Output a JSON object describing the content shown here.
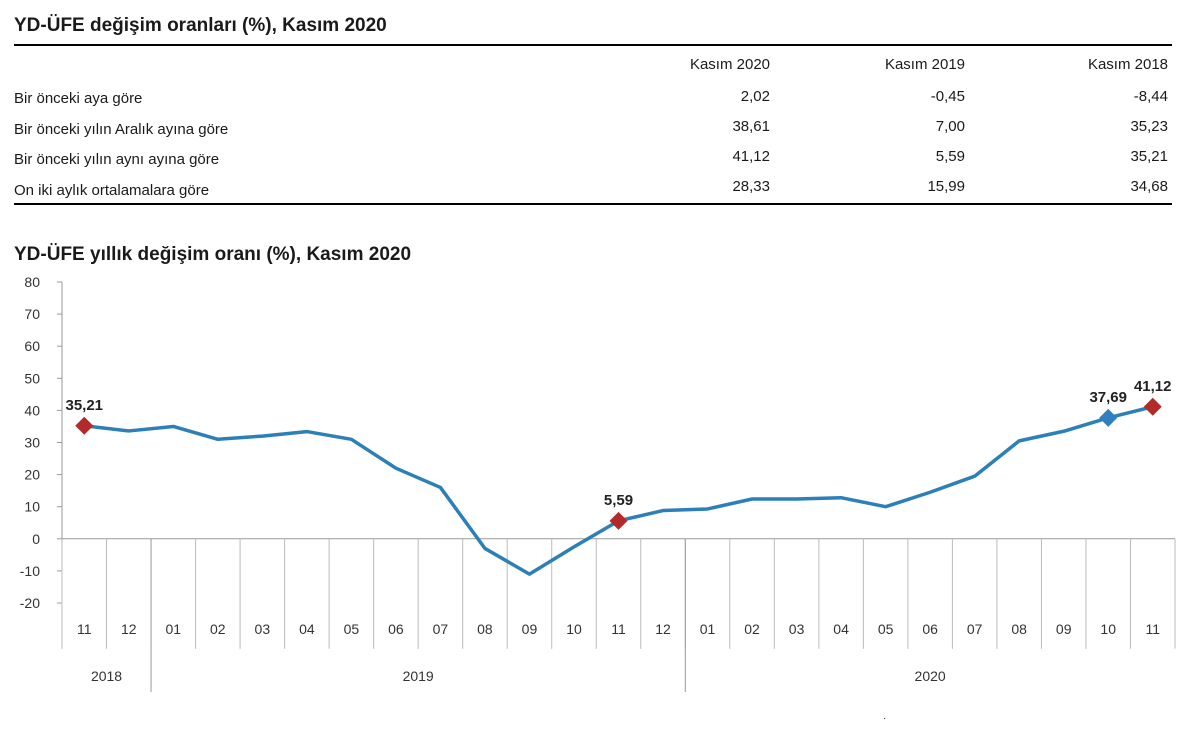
{
  "table": {
    "title": "YD-ÜFE değişim oranları (%), Kasım 2020",
    "headers": [
      "Kasım 2020",
      "Kasım 2019",
      "Kasım 2018"
    ],
    "rows": [
      {
        "label": "Bir önceki aya göre",
        "values": [
          "2,02",
          "-0,45",
          "-8,44"
        ]
      },
      {
        "label": "Bir önceki yılın Aralık ayına göre",
        "values": [
          "38,61",
          "7,00",
          "35,23"
        ]
      },
      {
        "label": "Bir önceki yılın aynı ayına göre",
        "values": [
          "41,12",
          "5,59",
          "35,21"
        ]
      },
      {
        "label": "On iki aylık ortalamalara göre",
        "values": [
          "28,33",
          "15,99",
          "34,68"
        ]
      }
    ]
  },
  "chart_data": {
    "type": "line",
    "title": "YD-ÜFE yıllık değişim oranı (%), Kasım 2020",
    "ylim": [
      -20,
      80
    ],
    "yticks": [
      -20,
      -10,
      0,
      10,
      20,
      30,
      40,
      50,
      60,
      70,
      80
    ],
    "categories": [
      "11",
      "12",
      "01",
      "02",
      "03",
      "04",
      "05",
      "06",
      "07",
      "08",
      "09",
      "10",
      "11",
      "12",
      "01",
      "02",
      "03",
      "04",
      "05",
      "06",
      "07",
      "08",
      "09",
      "10",
      "11"
    ],
    "years": [
      {
        "label": "2018",
        "span": 2
      },
      {
        "label": "2019",
        "span": 12
      },
      {
        "label": "2020",
        "span": 11
      }
    ],
    "series": [
      {
        "values": [
          35.21,
          33.6,
          35.0,
          31.0,
          32.0,
          33.4,
          31.0,
          22.0,
          16.0,
          -3.0,
          -11.0,
          -2.5,
          5.59,
          8.8,
          9.3,
          12.4,
          12.4,
          12.8,
          10.0,
          14.5,
          19.5,
          30.5,
          33.5,
          37.69,
          41.12
        ]
      }
    ],
    "annotations": [
      {
        "index": 0,
        "label": "35,21",
        "marker": "diamond",
        "color": "#b22a2a"
      },
      {
        "index": 12,
        "label": "5,59",
        "marker": "diamond",
        "color": "#b22a2a"
      },
      {
        "index": 23,
        "label": "37,69",
        "marker": "diamond",
        "color": "#2f7fc1"
      },
      {
        "index": 24,
        "label": "41,12",
        "marker": "diamond",
        "color": "#b22a2a"
      }
    ],
    "line_color": "#2d7fb8",
    "grid": false
  },
  "footer_mark": "·"
}
